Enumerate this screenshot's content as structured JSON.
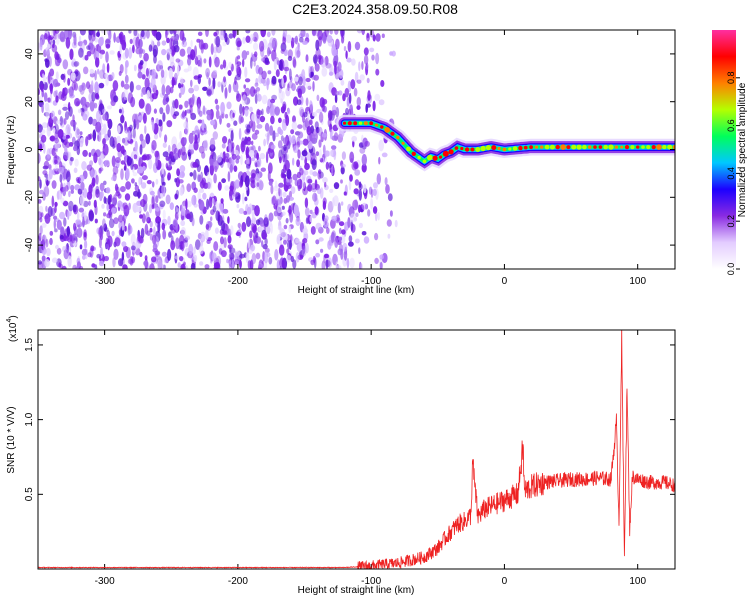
{
  "title": "C2E3.2024.358.09.50.R08",
  "chart_data": [
    {
      "type": "heatmap",
      "xlabel": "Height of straight line (km)",
      "ylabel": "Frequency (Hz)",
      "xlim": [
        -350,
        128
      ],
      "ylim": [
        -50,
        50
      ],
      "xticks": [
        -300,
        -200,
        -100,
        0,
        100
      ],
      "xtick_labels": [
        "-300",
        "-200",
        "-100",
        "0",
        "100"
      ],
      "yticks": [
        -40,
        -20,
        0,
        20,
        40
      ],
      "ytick_labels": [
        "-40",
        "-20",
        "0",
        "20",
        "40"
      ],
      "colorbar": {
        "label": "Normalized spectral amplitude",
        "range": [
          0,
          1
        ],
        "ticks": [
          0.0,
          0.2,
          0.4,
          0.6,
          0.8
        ],
        "tick_labels": [
          "0.0",
          "0.2",
          "0.4",
          "0.6",
          "0.8"
        ],
        "colormap": [
          "#ffffff",
          "#e3ccff",
          "#8a2be2",
          "#1c00ff",
          "#00c8ff",
          "#00ff5a",
          "#b4ff00",
          "#ff7f00",
          "#ff0000",
          "#ff2fa0"
        ]
      },
      "noise_region_x": [
        -350,
        -85
      ],
      "ridge": {
        "x": [
          -120,
          -110,
          -100,
          -90,
          -85,
          -80,
          -75,
          -70,
          -65,
          -60,
          -55,
          -50,
          -45,
          -40,
          -35,
          -30,
          -20,
          -10,
          0,
          20,
          40,
          60,
          80,
          90,
          100,
          128
        ],
        "y": [
          11,
          11,
          11,
          9,
          7,
          5,
          2,
          -1,
          -3,
          -5,
          -3,
          -4,
          -2,
          -1,
          1,
          0,
          0,
          1,
          0,
          1,
          1,
          1,
          1,
          1,
          1,
          1
        ]
      }
    },
    {
      "type": "line",
      "xlabel": "Height of straight line (km)",
      "ylabel": "SNR (10 * V/V)",
      "y_multiplier_label": "(x10",
      "y_multiplier_exp": "4",
      "xlim": [
        -350,
        128
      ],
      "ylim": [
        0,
        1.6
      ],
      "xticks": [
        -300,
        -200,
        -100,
        0,
        100
      ],
      "xtick_labels": [
        "-300",
        "-200",
        "-100",
        "0",
        "100"
      ],
      "yticks": [
        0.5,
        1.0,
        1.5
      ],
      "ytick_labels": [
        "0.5",
        "1.0",
        "1.5"
      ],
      "line_color": "#ee2222",
      "x": [
        -350,
        -300,
        -250,
        -200,
        -150,
        -120,
        -100,
        -90,
        -80,
        -70,
        -60,
        -50,
        -45,
        -40,
        -35,
        -30,
        -25,
        -24,
        -20,
        -15,
        -10,
        -5,
        0,
        5,
        10,
        14,
        15,
        20,
        30,
        40,
        50,
        60,
        70,
        80,
        84,
        86,
        88,
        90,
        92,
        94,
        96,
        100,
        110,
        120,
        128
      ],
      "y": [
        0.01,
        0.01,
        0.01,
        0.01,
        0.01,
        0.01,
        0.02,
        0.03,
        0.04,
        0.06,
        0.08,
        0.14,
        0.2,
        0.25,
        0.3,
        0.32,
        0.36,
        0.72,
        0.35,
        0.4,
        0.42,
        0.44,
        0.46,
        0.48,
        0.5,
        0.82,
        0.52,
        0.55,
        0.58,
        0.59,
        0.6,
        0.6,
        0.61,
        0.6,
        0.98,
        0.3,
        1.55,
        0.08,
        1.22,
        0.25,
        0.62,
        0.6,
        0.58,
        0.58,
        0.56
      ]
    }
  ]
}
